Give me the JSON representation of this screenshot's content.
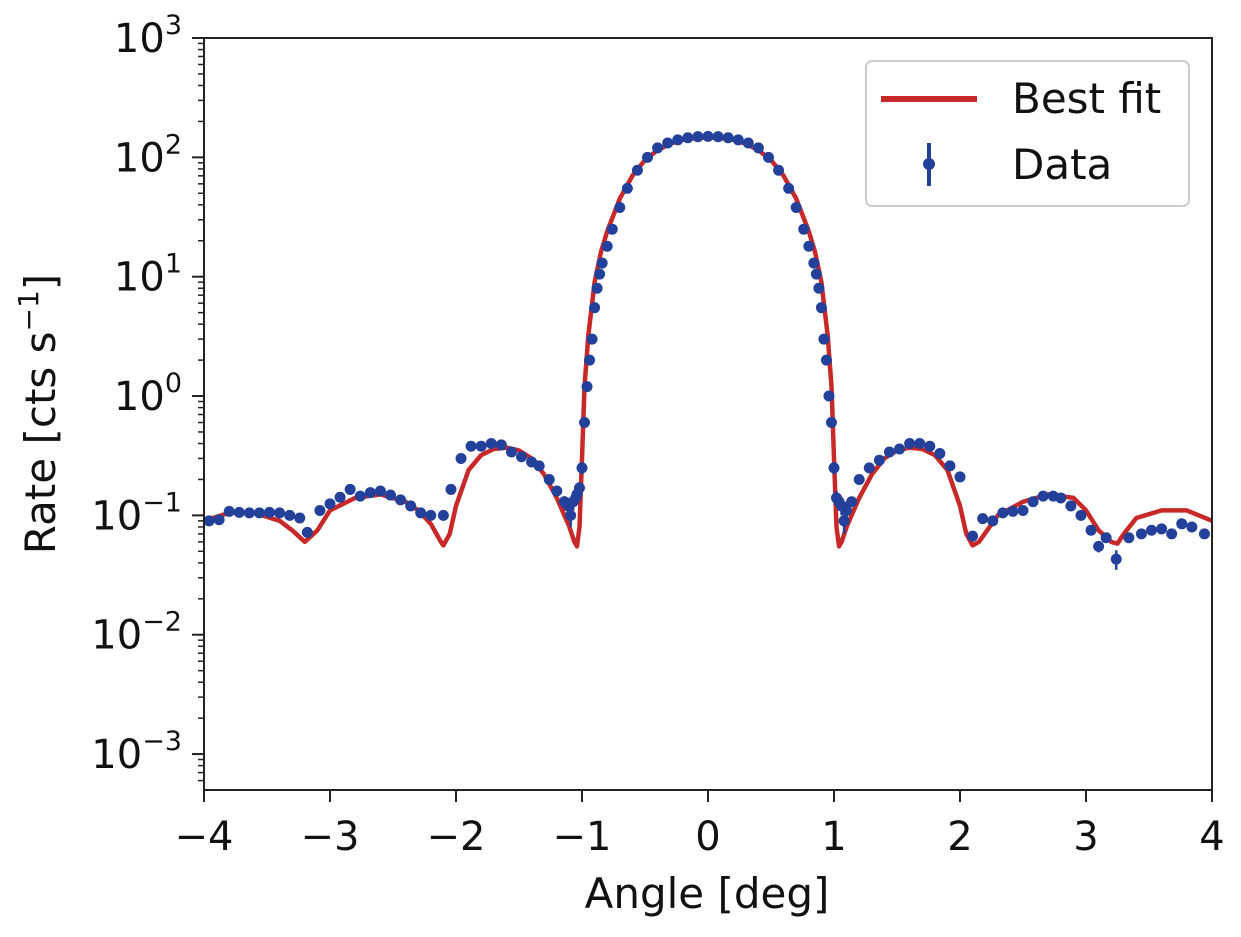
{
  "chart_data": {
    "type": "scatter",
    "title": "",
    "xlabel": "Angle [deg]",
    "ylabel_parts": {
      "base": "Rate [cts s",
      "exp": "−1",
      "close": "]"
    },
    "xlim": [
      -4,
      4
    ],
    "ylim": [
      0.0005,
      1000
    ],
    "yscale": "log",
    "grid": false,
    "legend_position": "top-right",
    "xticks": [
      {
        "value": -4,
        "label": "−4"
      },
      {
        "value": -3,
        "label": "−3"
      },
      {
        "value": -2,
        "label": "−2"
      },
      {
        "value": -1,
        "label": "−1"
      },
      {
        "value": 0,
        "label": "0"
      },
      {
        "value": 1,
        "label": "1"
      },
      {
        "value": 2,
        "label": "2"
      },
      {
        "value": 3,
        "label": "3"
      },
      {
        "value": 4,
        "label": "4"
      }
    ],
    "yticks": [
      {
        "value": 0.001,
        "base": "10",
        "exp": "−3"
      },
      {
        "value": 0.01,
        "base": "10",
        "exp": "−2"
      },
      {
        "value": 0.1,
        "base": "10",
        "exp": "−1"
      },
      {
        "value": 1,
        "base": "10",
        "exp": "0"
      },
      {
        "value": 10,
        "base": "10",
        "exp": "1"
      },
      {
        "value": 100,
        "base": "10",
        "exp": "2"
      },
      {
        "value": 1000,
        "base": "10",
        "exp": "3"
      }
    ],
    "series": [
      {
        "name": "Best fit",
        "kind": "line",
        "color": "#c82828",
        "x": [
          -4.0,
          -3.8,
          -3.6,
          -3.4,
          -3.3,
          -3.2,
          -3.1,
          -3.0,
          -2.8,
          -2.6,
          -2.4,
          -2.3,
          -2.2,
          -2.12,
          -2.1,
          -2.05,
          -2.0,
          -1.9,
          -1.8,
          -1.7,
          -1.6,
          -1.5,
          -1.4,
          -1.3,
          -1.2,
          -1.1,
          -1.06,
          -1.04,
          -1.02,
          -1.0,
          -0.98,
          -0.95,
          -0.9,
          -0.85,
          -0.8,
          -0.7,
          -0.6,
          -0.5,
          -0.4,
          -0.3,
          -0.2,
          -0.1,
          0.0,
          0.1,
          0.2,
          0.3,
          0.4,
          0.5,
          0.6,
          0.7,
          0.8,
          0.85,
          0.9,
          0.95,
          0.98,
          1.0,
          1.02,
          1.04,
          1.06,
          1.1,
          1.2,
          1.3,
          1.4,
          1.5,
          1.6,
          1.7,
          1.8,
          1.9,
          2.0,
          2.05,
          2.1,
          2.15,
          2.3,
          2.5,
          2.7,
          2.9,
          3.0,
          3.1,
          3.2,
          3.25,
          3.3,
          3.4,
          3.6,
          3.8,
          4.0
        ],
        "y": [
          0.09,
          0.105,
          0.105,
          0.09,
          0.075,
          0.06,
          0.075,
          0.11,
          0.14,
          0.15,
          0.13,
          0.11,
          0.085,
          0.06,
          0.056,
          0.07,
          0.12,
          0.24,
          0.32,
          0.36,
          0.37,
          0.35,
          0.3,
          0.22,
          0.14,
          0.08,
          0.06,
          0.055,
          0.08,
          0.3,
          1.2,
          3.2,
          9.0,
          16.0,
          24.0,
          45.0,
          70.0,
          95.0,
          115.0,
          130.0,
          140.0,
          145.0,
          147.0,
          145.0,
          140.0,
          130.0,
          115.0,
          95.0,
          70.0,
          45.0,
          24.0,
          16.0,
          9.0,
          3.2,
          1.2,
          0.3,
          0.08,
          0.055,
          0.06,
          0.08,
          0.14,
          0.22,
          0.3,
          0.35,
          0.37,
          0.36,
          0.32,
          0.24,
          0.12,
          0.07,
          0.056,
          0.06,
          0.1,
          0.13,
          0.15,
          0.14,
          0.11,
          0.075,
          0.06,
          0.058,
          0.07,
          0.095,
          0.11,
          0.11,
          0.09
        ]
      },
      {
        "name": "Data",
        "kind": "scatter",
        "color": "#23409a",
        "x": [
          -3.96,
          -3.88,
          -3.8,
          -3.72,
          -3.64,
          -3.56,
          -3.48,
          -3.4,
          -3.32,
          -3.24,
          -3.18,
          -3.08,
          -3.0,
          -2.92,
          -2.84,
          -2.76,
          -2.68,
          -2.6,
          -2.52,
          -2.44,
          -2.36,
          -2.28,
          -2.2,
          -2.1,
          -2.04,
          -1.96,
          -1.88,
          -1.8,
          -1.72,
          -1.64,
          -1.56,
          -1.48,
          -1.4,
          -1.34,
          -1.26,
          -1.2,
          -1.14,
          -1.11,
          -1.09,
          -1.07,
          -1.05,
          -1.04,
          -1.02,
          -1.0,
          -0.98,
          -0.96,
          -0.94,
          -0.92,
          -0.9,
          -0.88,
          -0.86,
          -0.84,
          -0.8,
          -0.76,
          -0.7,
          -0.64,
          -0.56,
          -0.48,
          -0.4,
          -0.32,
          -0.24,
          -0.16,
          -0.08,
          0.0,
          0.08,
          0.16,
          0.24,
          0.32,
          0.4,
          0.48,
          0.56,
          0.64,
          0.7,
          0.76,
          0.8,
          0.84,
          0.86,
          0.88,
          0.9,
          0.92,
          0.94,
          0.96,
          0.98,
          1.0,
          1.02,
          1.04,
          1.06,
          1.08,
          1.1,
          1.14,
          1.2,
          1.28,
          1.36,
          1.44,
          1.52,
          1.6,
          1.68,
          1.76,
          1.84,
          1.92,
          2.0,
          2.1,
          2.18,
          2.26,
          2.34,
          2.42,
          2.5,
          2.58,
          2.66,
          2.74,
          2.8,
          2.88,
          2.96,
          3.04,
          3.1,
          3.16,
          3.24,
          3.34,
          3.44,
          3.52,
          3.6,
          3.68,
          3.76,
          3.84,
          3.94
        ],
        "y": [
          0.09,
          0.092,
          0.108,
          0.106,
          0.105,
          0.105,
          0.106,
          0.105,
          0.1,
          0.095,
          0.072,
          0.11,
          0.125,
          0.142,
          0.165,
          0.145,
          0.155,
          0.16,
          0.148,
          0.135,
          0.12,
          0.105,
          0.1,
          0.1,
          0.165,
          0.3,
          0.38,
          0.38,
          0.4,
          0.39,
          0.34,
          0.31,
          0.28,
          0.26,
          0.2,
          0.16,
          0.13,
          0.12,
          0.1,
          0.13,
          0.14,
          0.15,
          0.17,
          0.25,
          0.6,
          1.2,
          2.0,
          3.0,
          5.5,
          8.0,
          10.5,
          13.0,
          18.0,
          25.0,
          38.0,
          55.0,
          78.0,
          100.0,
          120.0,
          132.0,
          140.0,
          146.0,
          149.0,
          150.0,
          149.0,
          146.0,
          140.0,
          132.0,
          120.0,
          100.0,
          78.0,
          55.0,
          38.0,
          25.0,
          18.0,
          13.0,
          10.5,
          8.0,
          5.5,
          3.0,
          2.0,
          1.0,
          0.6,
          0.25,
          0.14,
          0.13,
          0.12,
          0.09,
          0.11,
          0.13,
          0.2,
          0.25,
          0.29,
          0.34,
          0.36,
          0.4,
          0.4,
          0.38,
          0.33,
          0.26,
          0.21,
          0.067,
          0.094,
          0.09,
          0.105,
          0.108,
          0.11,
          0.13,
          0.145,
          0.145,
          0.14,
          0.12,
          0.1,
          0.075,
          0.055,
          0.065,
          0.043,
          0.065,
          0.07,
          0.075,
          0.077,
          0.07,
          0.085,
          0.08,
          0.07
        ],
        "yerr": [
          0.004,
          0.004,
          0.004,
          0.004,
          0.004,
          0.004,
          0.004,
          0.004,
          0.004,
          0.004,
          0.004,
          0.004,
          0.004,
          0.004,
          0.004,
          0.004,
          0.004,
          0.004,
          0.004,
          0.004,
          0.004,
          0.004,
          0.004,
          0.004,
          0.006,
          0.01,
          0.01,
          0.01,
          0.01,
          0.01,
          0.01,
          0.01,
          0.01,
          0.01,
          0.008,
          0.006,
          0.015,
          0.02,
          0.02,
          0.02,
          0.02,
          0.02,
          0.02,
          0.03,
          0.04,
          0.06,
          0.08,
          0.1,
          0.15,
          0.2,
          0.25,
          0.3,
          0.4,
          0.5,
          0.6,
          0.8,
          1.0,
          1.2,
          1.4,
          1.5,
          1.6,
          1.7,
          1.7,
          1.7,
          1.7,
          1.7,
          1.6,
          1.5,
          1.4,
          1.2,
          1.0,
          0.8,
          0.6,
          0.5,
          0.4,
          0.3,
          0.25,
          0.2,
          0.15,
          0.1,
          0.08,
          0.05,
          0.04,
          0.03,
          0.02,
          0.02,
          0.02,
          0.02,
          0.02,
          0.006,
          0.008,
          0.01,
          0.01,
          0.01,
          0.01,
          0.01,
          0.01,
          0.01,
          0.01,
          0.01,
          0.008,
          0.005,
          0.005,
          0.005,
          0.005,
          0.005,
          0.005,
          0.005,
          0.005,
          0.005,
          0.005,
          0.005,
          0.005,
          0.006,
          0.006,
          0.006,
          0.008,
          0.006,
          0.006,
          0.006,
          0.006,
          0.006,
          0.006,
          0.006,
          0.006
        ]
      }
    ],
    "legend": [
      {
        "label": "Best fit",
        "marker": "line",
        "color": "#c82828"
      },
      {
        "label": "Data",
        "marker": "errorbar-point",
        "color": "#23409a"
      }
    ]
  }
}
